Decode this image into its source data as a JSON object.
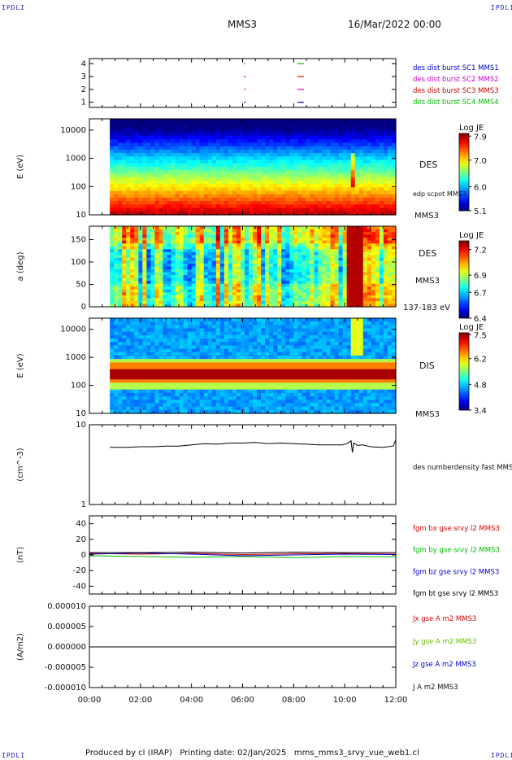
{
  "header": {
    "corner_tl": "IPDLI",
    "corner_tr": "IPDLI",
    "corner_bl": "IPDLI",
    "corner_br": "IPDLI",
    "title": "MMS3",
    "date": "16/Mar/2022 00:00"
  },
  "footer": {
    "text": "Produced by cl (IRAP)   Printing date: 02/Jan/2025   mms_mms3_srvy_vue_web1.cl"
  },
  "colors": {
    "mms1": "#0000cc",
    "mms2": "#cc00cc",
    "mms3": "#cc0000",
    "mms4": "#00bb00",
    "bx": "#dd0000",
    "by": "#00bb00",
    "bz": "#0000cc",
    "bt": "#000000"
  },
  "chart_data": [
    {
      "id": "burst",
      "type": "scatter",
      "yticks": [
        "1",
        "2",
        "3",
        "4"
      ],
      "ylim": [
        0.6,
        4.4
      ],
      "xlim": [
        0,
        12
      ],
      "legend": [
        "des dist burst SC1 MMS1",
        "des dist burst SC2 MMS2",
        "des dist burst SC3 MMS3",
        "des dist burst SC4 MMS4"
      ],
      "series": [
        {
          "y": 4,
          "segments": [
            [
              6.05,
              6.12
            ],
            [
              8.15,
              8.4
            ]
          ]
        },
        {
          "y": 3,
          "segments": [
            [
              6.05,
              6.12
            ],
            [
              8.15,
              8.4
            ]
          ]
        },
        {
          "y": 2,
          "segments": [
            [
              6.05,
              6.12
            ],
            [
              8.15,
              8.4
            ]
          ]
        },
        {
          "y": 1,
          "segments": [
            [
              6.05,
              6.12
            ],
            [
              8.15,
              8.4
            ]
          ]
        }
      ]
    },
    {
      "id": "des-energy",
      "type": "heatmap",
      "ylabel": "E (eV)",
      "yscale": "log",
      "yticks": [
        "10",
        "100",
        "1000",
        "10000"
      ],
      "ylim": [
        10,
        25000
      ],
      "xlim": [
        0,
        12
      ],
      "data_start": 0.8,
      "side_labels": [
        "DES",
        "edp scpot MMS3",
        "MMS3"
      ],
      "colorbar": {
        "title": "Log JE",
        "min": 5.1,
        "max": 8.0,
        "ticks": [
          "7.9",
          "7.0",
          "6.0",
          "5.1"
        ]
      },
      "spike_hour": 10.3
    },
    {
      "id": "des-pitch",
      "type": "heatmap",
      "ylabel": "a (deg)",
      "yticks": [
        "0",
        "50",
        "100",
        "150"
      ],
      "ylim": [
        0,
        180
      ],
      "xlim": [
        0,
        12
      ],
      "data_start": 0.8,
      "side_labels": [
        "DES",
        "MMS3",
        "137-183 eV"
      ],
      "colorbar": {
        "title": "Log JE",
        "min": 6.4,
        "max": 7.3,
        "ticks": [
          "7.2",
          "6.9",
          "6.7",
          "6.4"
        ]
      }
    },
    {
      "id": "dis-energy",
      "type": "heatmap",
      "ylabel": "E (eV)",
      "yscale": "log",
      "yticks": [
        "10",
        "100",
        "1000",
        "10000"
      ],
      "ylim": [
        10,
        25000
      ],
      "xlim": [
        0,
        12
      ],
      "data_start": 0.8,
      "side_labels": [
        "DIS",
        "MMS3"
      ],
      "colorbar": {
        "title": "Log JE",
        "min": 3.4,
        "max": 7.6,
        "ticks": [
          "7.5",
          "6.2",
          "4.8",
          "3.4"
        ]
      },
      "peak_energy": 900
    },
    {
      "id": "density",
      "type": "line",
      "ylabel": "(cm^-3)",
      "yscale": "log",
      "yticks": [
        "1",
        "10"
      ],
      "ylim": [
        1,
        10
      ],
      "xlim": [
        0,
        12
      ],
      "legend": [
        "des numberdensity fast MMS3"
      ],
      "series": [
        {
          "x": [
            0.8,
            1.5,
            2.0,
            2.5,
            3.0,
            3.5,
            4.0,
            4.5,
            5.0,
            5.5,
            6.0,
            6.5,
            7.0,
            7.5,
            8.0,
            8.5,
            9.0,
            9.5,
            9.9,
            10.1,
            10.25,
            10.3,
            10.35,
            10.5,
            10.7,
            11.0,
            11.5,
            11.9,
            12.0
          ],
          "y": [
            5.2,
            5.2,
            5.3,
            5.3,
            5.4,
            5.4,
            5.6,
            5.8,
            5.7,
            5.9,
            5.9,
            6.0,
            5.8,
            5.9,
            5.8,
            5.7,
            5.6,
            5.6,
            5.6,
            5.8,
            6.3,
            4.5,
            5.9,
            5.5,
            5.6,
            5.3,
            5.2,
            5.4,
            6.5
          ]
        }
      ]
    },
    {
      "id": "magnetic",
      "type": "line",
      "ylabel": "(nT)",
      "yticks": [
        "-40",
        "-20",
        "0",
        "20",
        "40"
      ],
      "ylim": [
        -50,
        50
      ],
      "xlim": [
        0,
        12
      ],
      "legend": [
        "fgm bx gse srvy l2 MMS3",
        "fgm by gse srvy l2 MMS3",
        "fgm bz gse srvy l2 MMS3",
        "fgm bt gse srvy l2 MMS3"
      ],
      "series": [
        {
          "x": [
            0.0,
            2.0,
            4.0,
            6.0,
            8.0,
            10.0,
            12.0
          ],
          "y": [
            2.0,
            1.0,
            2.0,
            0.5,
            1.5,
            2.0,
            1.0
          ]
        },
        {
          "x": [
            0.0,
            2.0,
            4.0,
            6.0,
            8.0,
            10.0,
            12.0
          ],
          "y": [
            -1.0,
            -2.0,
            -3.0,
            -2.0,
            -3.5,
            -2.0,
            -2.5
          ]
        },
        {
          "x": [
            0.0,
            2.0,
            4.0,
            6.0,
            8.0,
            10.0,
            12.0
          ],
          "y": [
            1.0,
            2.5,
            1.0,
            -1.0,
            0.0,
            1.0,
            0.5
          ]
        },
        {
          "x": [
            0.0,
            2.0,
            4.0,
            6.0,
            8.0,
            10.0,
            12.0
          ],
          "y": [
            3.0,
            3.0,
            3.5,
            2.5,
            3.5,
            3.0,
            3.0
          ]
        }
      ]
    },
    {
      "id": "current",
      "type": "line",
      "ylabel": "(A/m2)",
      "yticks": [
        "-0.000010",
        "-0.000005",
        "0.000000",
        "0.000005",
        "0.000010"
      ],
      "ylim": [
        -1e-05,
        1e-05
      ],
      "xlim": [
        0,
        12
      ],
      "xticks": [
        "00:00",
        "02:00",
        "04:00",
        "06:00",
        "08:00",
        "10:00",
        "12:00"
      ],
      "legend": [
        "Jx gse A m2 MMS3",
        "Jy gse A m2 MMS3",
        "Jz gse A m2 MMS3",
        "J A m2 MMS3"
      ],
      "series": [
        {
          "x": [
            0,
            12
          ],
          "y": [
            0,
            0
          ]
        }
      ]
    }
  ]
}
